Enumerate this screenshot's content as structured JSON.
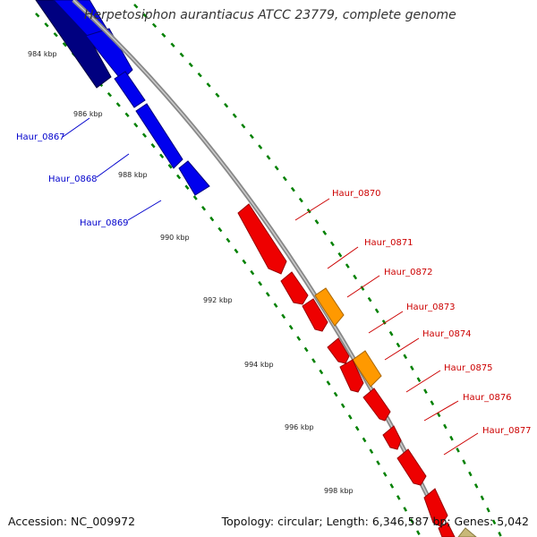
{
  "title": "Herpetosiphon aurantiacus ATCC 23779, complete genome",
  "footer": {
    "accession": "Accession: NC_009972",
    "summary": "Topology: circular; Length: 6,346,587 bp; Genes: 5,042"
  },
  "kbp_ticks": [
    "984 kbp",
    "986 kbp",
    "988 kbp",
    "990 kbp",
    "992 kbp",
    "994 kbp",
    "996 kbp",
    "998 kbp"
  ],
  "colors": {
    "forward_gene": "#0000ee",
    "forward_gene_dark": "#000080",
    "reverse_gene": "#ee0000",
    "reverse_orange": "#ff9900",
    "backbone": "#999999",
    "dotted_ring": "#008000",
    "forward_label": "#0000cc",
    "reverse_label": "#cc0000",
    "tan_gene": "#c8b878"
  },
  "genes_forward": [
    {
      "label": "Haur_0867"
    },
    {
      "label": "Haur_0868"
    },
    {
      "label": "Haur_0869"
    }
  ],
  "genes_reverse": [
    {
      "label": "Haur_0870"
    },
    {
      "label": "Haur_0871"
    },
    {
      "label": "Haur_0872"
    },
    {
      "label": "Haur_0873"
    },
    {
      "label": "Haur_0874"
    },
    {
      "label": "Haur_0875"
    },
    {
      "label": "Haur_0876"
    },
    {
      "label": "Haur_0877"
    }
  ]
}
